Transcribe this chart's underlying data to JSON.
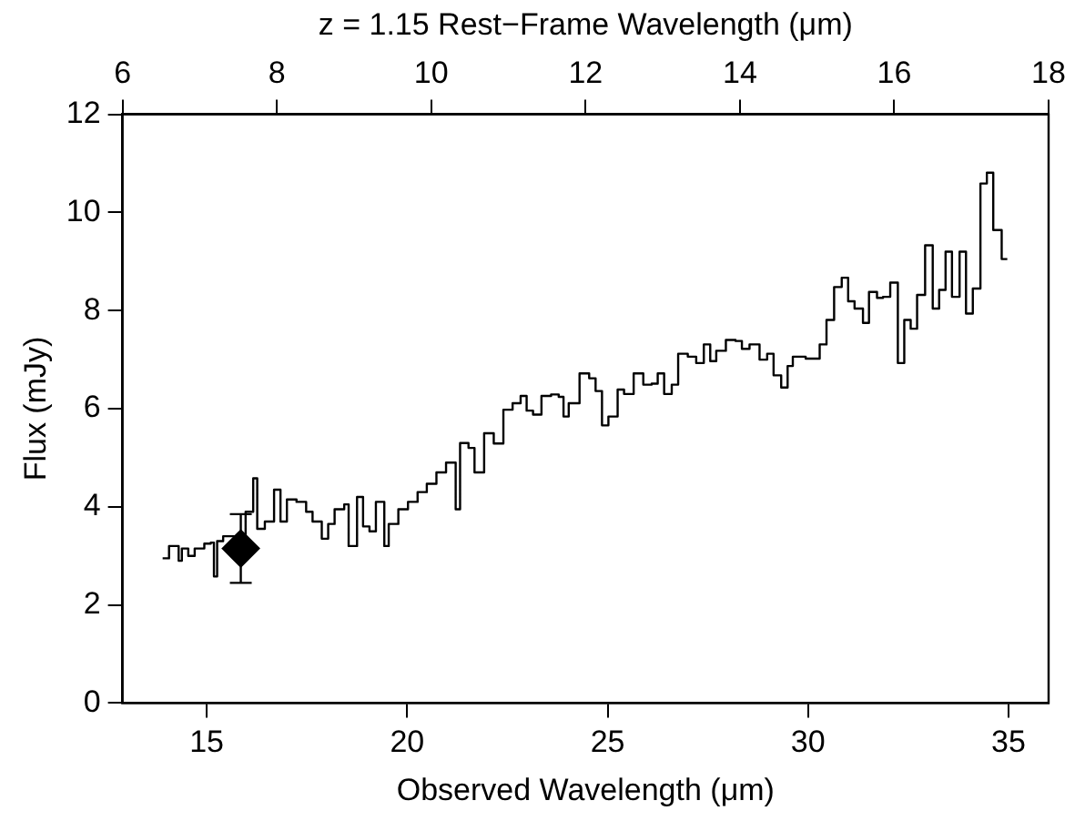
{
  "chart_data": {
    "type": "step",
    "xlabel": "Observed Wavelength (μm)",
    "ylabel": "Flux (mJy)",
    "x2label": "z = 1.15 Rest−Frame Wavelength (μm)",
    "xlim": [
      12.9,
      36
    ],
    "xticks": [
      15,
      20,
      25,
      30,
      35
    ],
    "x2lim": [
      6,
      18
    ],
    "x2ticks": [
      6,
      8,
      10,
      12,
      14,
      16,
      18
    ],
    "ylim": [
      0,
      12
    ],
    "yticks": [
      0,
      2,
      4,
      6,
      8,
      10,
      12
    ],
    "grid": false,
    "legend": false,
    "series": [
      {
        "type": "step",
        "color": "#000000",
        "marker": "none",
        "x": [
          13.9,
          14.06,
          14.3,
          14.38,
          14.54,
          14.7,
          14.94,
          15.1,
          15.18,
          15.26,
          15.41,
          15.97,
          16.16,
          16.26,
          16.45,
          16.68,
          16.84,
          17.0,
          17.24,
          17.48,
          17.64,
          17.87,
          18.03,
          18.19,
          18.43,
          18.54,
          18.75,
          18.9,
          19.06,
          19.22,
          19.43,
          19.54,
          19.78,
          20.02,
          20.26,
          20.49,
          20.73,
          20.97,
          21.21,
          21.32,
          21.53,
          21.68,
          21.92,
          22.16,
          22.4,
          22.63,
          22.83,
          22.98,
          23.14,
          23.35,
          23.59,
          23.78,
          23.9,
          24.03,
          24.3,
          24.54,
          24.7,
          24.86,
          25.02,
          25.25,
          25.41,
          25.65,
          25.89,
          26.1,
          26.25,
          26.41,
          26.6,
          26.76,
          27.0,
          27.21,
          27.4,
          27.56,
          27.71,
          27.95,
          28.19,
          28.35,
          28.54,
          28.79,
          28.98,
          29.14,
          29.33,
          29.49,
          29.62,
          29.94,
          30.29,
          30.46,
          30.65,
          30.84,
          31.0,
          31.16,
          31.37,
          31.52,
          31.72,
          31.87,
          32.05,
          32.24,
          32.4,
          32.56,
          32.72,
          32.92,
          33.11,
          33.27,
          33.43,
          33.59,
          33.78,
          33.94,
          34.11,
          34.3,
          34.46,
          34.62,
          34.83,
          34.97
        ],
        "values": [
          2.95,
          3.2,
          2.9,
          3.15,
          3.0,
          3.15,
          3.25,
          3.27,
          2.58,
          3.3,
          3.4,
          3.9,
          4.58,
          3.55,
          3.7,
          4.35,
          3.7,
          4.15,
          4.1,
          3.9,
          3.7,
          3.35,
          3.65,
          3.95,
          4.05,
          3.2,
          4.2,
          3.6,
          3.5,
          4.1,
          3.2,
          3.65,
          3.95,
          4.1,
          4.3,
          4.47,
          4.7,
          4.9,
          3.95,
          5.3,
          5.2,
          4.7,
          5.5,
          5.29,
          5.98,
          6.11,
          6.26,
          5.96,
          5.88,
          6.26,
          6.29,
          6.24,
          5.84,
          6.11,
          6.72,
          6.62,
          6.36,
          5.66,
          5.84,
          6.39,
          6.3,
          6.72,
          6.49,
          6.51,
          6.72,
          6.3,
          6.49,
          7.12,
          7.06,
          6.93,
          7.31,
          6.97,
          7.18,
          7.4,
          7.38,
          7.22,
          7.31,
          7.0,
          7.12,
          6.68,
          6.43,
          6.87,
          7.06,
          7.02,
          7.31,
          7.81,
          8.48,
          8.67,
          8.19,
          8.04,
          7.75,
          8.38,
          8.26,
          8.28,
          8.57,
          6.93,
          7.81,
          7.63,
          8.32,
          9.33,
          8.04,
          8.42,
          9.2,
          8.28,
          9.2,
          7.94,
          8.45,
          10.59,
          10.81,
          9.64,
          9.05,
          9.05
        ]
      },
      {
        "type": "scatter",
        "color": "#000000",
        "marker": "diamond",
        "x": [
          15.85
        ],
        "values": [
          3.15
        ],
        "errors": [
          0.7
        ]
      }
    ]
  }
}
